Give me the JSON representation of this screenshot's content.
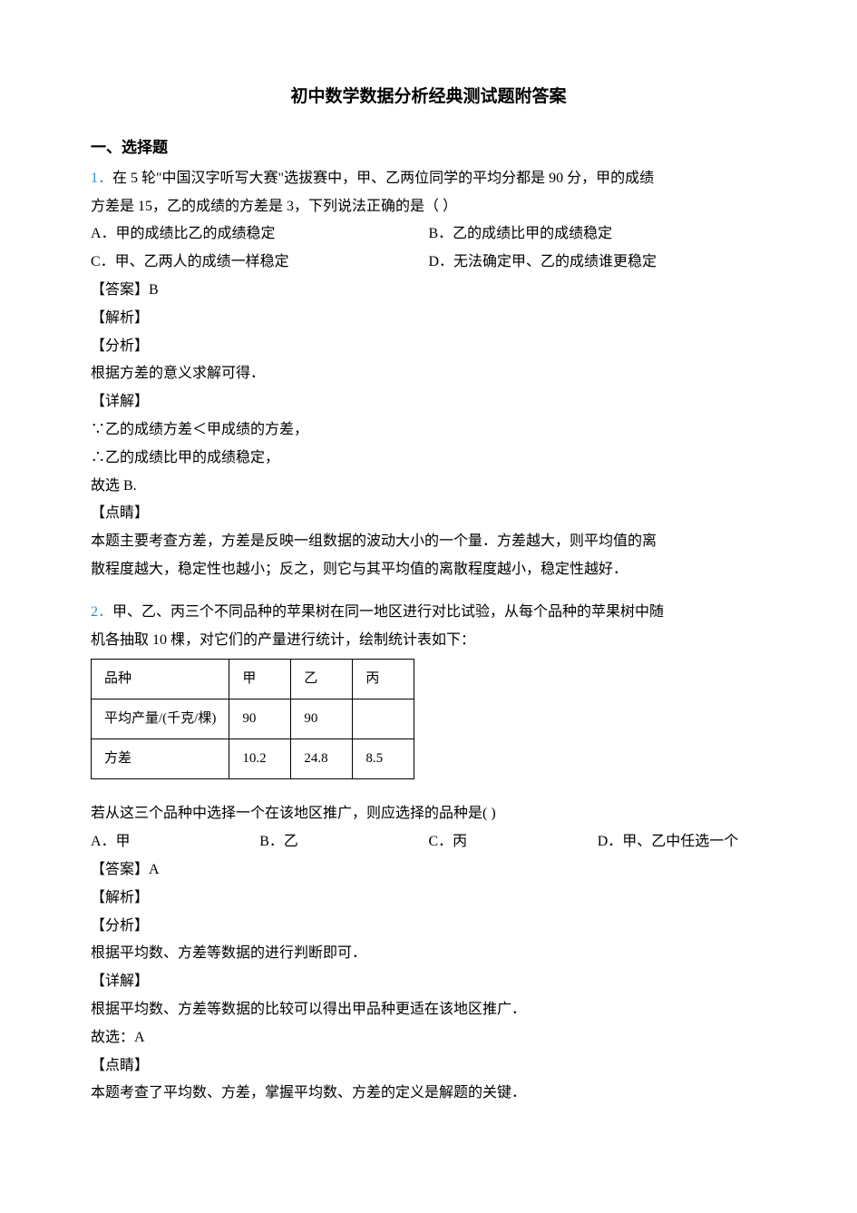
{
  "title": "初中数学数据分析经典测试题附答案",
  "section_heading": "一、选择题",
  "q1": {
    "num": "1．",
    "stem_a": "在 5 轮\"中国汉字听写大赛\"选拔赛中，甲、乙两位同学的平均分都是 90 分，甲的成绩",
    "stem_b": "方差是 15，乙的成绩的方差是 3，下列说法正确的是（ ）",
    "opt_a": "A．甲的成绩比乙的成绩稳定",
    "opt_b": "B．乙的成绩比甲的成绩稳定",
    "opt_c": "C．甲、乙两人的成绩一样稳定",
    "opt_d": "D．无法确定甲、乙的成绩谁更稳定",
    "answer_label": "【答案】",
    "answer": "B",
    "jiexi": "【解析】",
    "fenxi": "【分析】",
    "fenxi_text": "根据方差的意义求解可得．",
    "xiangjie": "【详解】",
    "line1": "∵乙的成绩方差＜甲成绩的方差，",
    "line2": "∴乙的成绩比甲的成绩稳定，",
    "line3": "故选 B.",
    "dianjing": "【点睛】",
    "dj_line1": "本题主要考查方差，方差是反映一组数据的波动大小的一个量．方差越大，则平均值的离",
    "dj_line2": "散程度越大，稳定性也越小；反之，则它与其平均值的离散程度越小，稳定性越好．"
  },
  "q2": {
    "num": "2．",
    "stem_a": "甲、乙、丙三个不同品种的苹果树在同一地区进行对比试验，从每个品种的苹果树中随",
    "stem_b": "机各抽取 10 棵，对它们的产量进行统计，绘制统计表如下：",
    "table": {
      "r1": {
        "c1": "品种",
        "c2": "甲",
        "c3": "乙",
        "c4": "丙"
      },
      "r2": {
        "c1": "平均产量/(千克/棵)",
        "c2": "90",
        "c3": "90",
        "c4": ""
      },
      "r3": {
        "c1": "方差",
        "c2": "10.2",
        "c3": "24.8",
        "c4": "8.5"
      }
    },
    "follow": "若从这三个品种中选择一个在该地区推广，则应选择的品种是(       )",
    "opt_a": "A．甲",
    "opt_b": "B．乙",
    "opt_c": "C．丙",
    "opt_d": "D．甲、乙中任选一个",
    "answer_label": "【答案】",
    "answer": "A",
    "jiexi": "【解析】",
    "fenxi": "【分析】",
    "fenxi_text": "根据平均数、方差等数据的进行判断即可．",
    "xiangjie": "【详解】",
    "xj_line1": "根据平均数、方差等数据的比较可以得出甲品种更适在该地区推广．",
    "xj_line2": "故选：A",
    "dianjing": "【点睛】",
    "dj_line1": "本题考查了平均数、方差，掌握平均数、方差的定义是解题的关键．"
  }
}
